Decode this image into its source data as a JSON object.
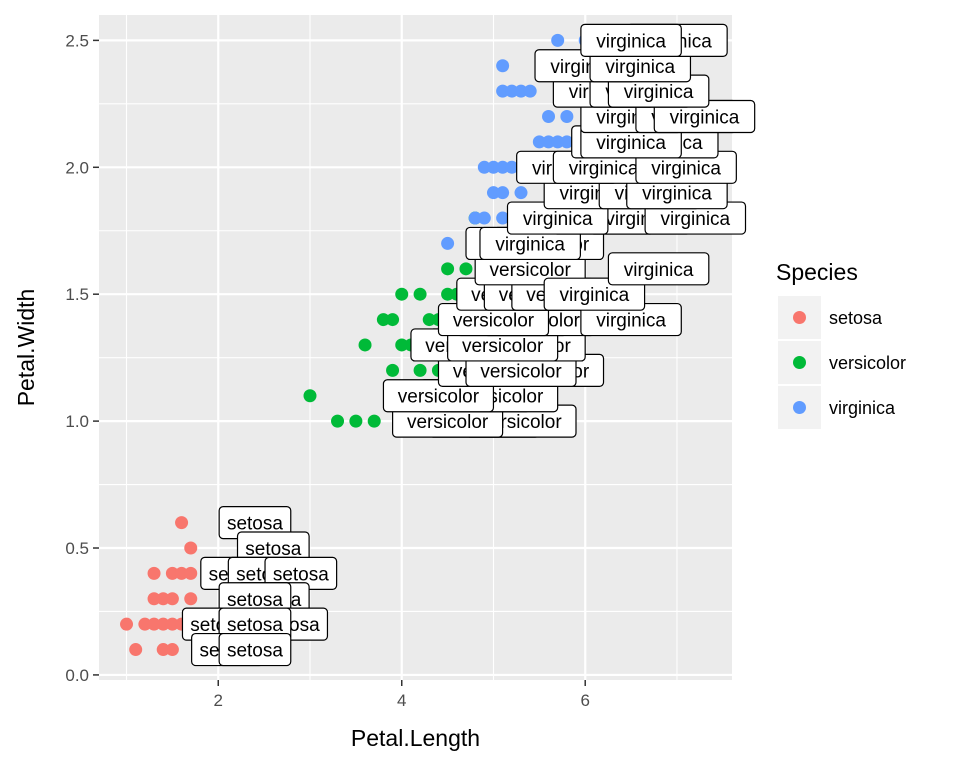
{
  "chart_data": {
    "type": "scatter",
    "xlabel": "Petal.Length",
    "ylabel": "Petal.Width",
    "xlim": [
      0.7,
      7.6
    ],
    "ylim": [
      -0.02,
      2.6
    ],
    "xticks": [
      2,
      4,
      6
    ],
    "yticks": [
      0.0,
      0.5,
      1.0,
      1.5,
      2.0,
      2.5
    ],
    "xtick_labels": [
      "2",
      "4",
      "6"
    ],
    "ytick_labels": [
      "0.0",
      "0.5",
      "1.0",
      "1.5",
      "2.0",
      "2.5"
    ],
    "grid": true,
    "legend": {
      "title": "Species",
      "position": "right",
      "items": [
        {
          "label": "setosa",
          "color": "#f8766d"
        },
        {
          "label": "versicolor",
          "color": "#00ba38"
        },
        {
          "label": "virginica",
          "color": "#619cff"
        }
      ]
    },
    "series": [
      {
        "name": "setosa",
        "color": "#f8766d",
        "points": [
          [
            1.0,
            0.2
          ],
          [
            1.1,
            0.1
          ],
          [
            1.2,
            0.2
          ],
          [
            1.3,
            0.2
          ],
          [
            1.4,
            0.2
          ],
          [
            1.5,
            0.2
          ],
          [
            1.6,
            0.2
          ],
          [
            1.3,
            0.3
          ],
          [
            1.4,
            0.3
          ],
          [
            1.5,
            0.3
          ],
          [
            1.7,
            0.3
          ],
          [
            1.3,
            0.4
          ],
          [
            1.5,
            0.4
          ],
          [
            1.6,
            0.4
          ],
          [
            1.7,
            0.4
          ],
          [
            1.9,
            0.4
          ],
          [
            1.4,
            0.1
          ],
          [
            1.5,
            0.1
          ],
          [
            1.6,
            0.6
          ],
          [
            1.7,
            0.5
          ],
          [
            1.9,
            0.2
          ]
        ]
      },
      {
        "name": "versicolor",
        "color": "#00ba38",
        "points": [
          [
            3.0,
            1.1
          ],
          [
            3.3,
            1.0
          ],
          [
            3.5,
            1.0
          ],
          [
            3.7,
            1.0
          ],
          [
            3.9,
            1.1
          ],
          [
            4.1,
            1.0
          ],
          [
            3.6,
            1.3
          ],
          [
            3.9,
            1.2
          ],
          [
            3.8,
            1.4
          ],
          [
            4.0,
            1.3
          ],
          [
            3.9,
            1.4
          ],
          [
            4.2,
            1.2
          ],
          [
            4.4,
            1.2
          ],
          [
            4.4,
            1.4
          ],
          [
            4.5,
            1.3
          ],
          [
            4.5,
            1.5
          ],
          [
            4.5,
            1.6
          ],
          [
            4.6,
            1.5
          ],
          [
            4.7,
            1.5
          ],
          [
            4.7,
            1.6
          ],
          [
            4.8,
            1.8
          ],
          [
            4.9,
            1.5
          ],
          [
            4.2,
            1.5
          ],
          [
            4.0,
            1.5
          ],
          [
            5.0,
            1.7
          ],
          [
            5.1,
            1.6
          ],
          [
            4.3,
            1.4
          ],
          [
            4.6,
            1.3
          ],
          [
            4.1,
            1.3
          ],
          [
            4.8,
            1.4
          ]
        ]
      },
      {
        "name": "virginica",
        "color": "#619cff",
        "points": [
          [
            4.5,
            1.7
          ],
          [
            4.8,
            1.8
          ],
          [
            4.9,
            1.8
          ],
          [
            5.0,
            1.9
          ],
          [
            5.1,
            1.8
          ],
          [
            5.1,
            1.9
          ],
          [
            5.3,
            1.9
          ],
          [
            4.9,
            2.0
          ],
          [
            5.0,
            2.0
          ],
          [
            5.1,
            2.0
          ],
          [
            5.2,
            2.0
          ],
          [
            5.5,
            2.1
          ],
          [
            5.6,
            2.1
          ],
          [
            5.7,
            2.1
          ],
          [
            5.8,
            2.1
          ],
          [
            5.9,
            2.1
          ],
          [
            6.0,
            1.8
          ],
          [
            5.6,
            2.2
          ],
          [
            5.8,
            2.2
          ],
          [
            6.7,
            2.2
          ],
          [
            6.1,
            2.3
          ],
          [
            5.1,
            2.3
          ],
          [
            5.2,
            2.3
          ],
          [
            5.3,
            2.3
          ],
          [
            5.4,
            2.3
          ],
          [
            5.6,
            2.4
          ],
          [
            5.1,
            2.4
          ],
          [
            6.1,
            2.5
          ],
          [
            5.7,
            2.5
          ],
          [
            6.0,
            2.5
          ],
          [
            6.7,
            2.0
          ],
          [
            5.6,
            1.8
          ],
          [
            5.1,
            1.5
          ],
          [
            5.6,
            1.4
          ],
          [
            6.3,
            1.8
          ]
        ]
      }
    ],
    "labels": [
      {
        "text": "setosa",
        "x": 2.4,
        "y": 0.6
      },
      {
        "text": "setosa",
        "x": 2.6,
        "y": 0.5
      },
      {
        "text": "setosa",
        "x": 2.2,
        "y": 0.4
      },
      {
        "text": "setosa",
        "x": 2.5,
        "y": 0.4
      },
      {
        "text": "setosa",
        "x": 2.9,
        "y": 0.4
      },
      {
        "text": "setosa",
        "x": 2.6,
        "y": 0.3
      },
      {
        "text": "setosa",
        "x": 2.4,
        "y": 0.3
      },
      {
        "text": "setosa",
        "x": 2.0,
        "y": 0.2
      },
      {
        "text": "setosa",
        "x": 2.4,
        "y": 0.2
      },
      {
        "text": "setosa",
        "x": 2.8,
        "y": 0.2
      },
      {
        "text": "setosa",
        "x": 2.4,
        "y": 0.2
      },
      {
        "text": "setosa",
        "x": 2.1,
        "y": 0.1
      },
      {
        "text": "setosa",
        "x": 2.4,
        "y": 0.1
      },
      {
        "text": "versicolor",
        "x": 4.9,
        "y": 1.0
      },
      {
        "text": "versicolor",
        "x": 5.3,
        "y": 1.0
      },
      {
        "text": "versicolor",
        "x": 4.5,
        "y": 1.0
      },
      {
        "text": "versicolor",
        "x": 4.8,
        "y": 1.1
      },
      {
        "text": "versicolor",
        "x": 5.1,
        "y": 1.1
      },
      {
        "text": "versicolor",
        "x": 4.4,
        "y": 1.1
      },
      {
        "text": "versicolor",
        "x": 5.6,
        "y": 1.2
      },
      {
        "text": "versicolor",
        "x": 5.0,
        "y": 1.2
      },
      {
        "text": "versicolor",
        "x": 5.3,
        "y": 1.2
      },
      {
        "text": "versicolor",
        "x": 5.4,
        "y": 1.3
      },
      {
        "text": "versicolor",
        "x": 4.9,
        "y": 1.3
      },
      {
        "text": "versicolor",
        "x": 4.7,
        "y": 1.3
      },
      {
        "text": "versicolor",
        "x": 5.1,
        "y": 1.3
      },
      {
        "text": "versicolor",
        "x": 5.2,
        "y": 1.4
      },
      {
        "text": "versicolor",
        "x": 5.5,
        "y": 1.4
      },
      {
        "text": "versicolor",
        "x": 5.0,
        "y": 1.4
      },
      {
        "text": "versicolor",
        "x": 5.2,
        "y": 1.5
      },
      {
        "text": "versicolor",
        "x": 5.5,
        "y": 1.5
      },
      {
        "text": "versicolor",
        "x": 5.8,
        "y": 1.5
      },
      {
        "text": "versicolor",
        "x": 5.4,
        "y": 1.6
      },
      {
        "text": "versicolor",
        "x": 5.6,
        "y": 1.7
      },
      {
        "text": "versicolor",
        "x": 5.3,
        "y": 1.7
      },
      {
        "text": "virginica",
        "x": 6.5,
        "y": 1.4
      },
      {
        "text": "virginica",
        "x": 6.1,
        "y": 1.5
      },
      {
        "text": "virginica",
        "x": 6.8,
        "y": 1.6
      },
      {
        "text": "virginica",
        "x": 5.4,
        "y": 1.7
      },
      {
        "text": "virginica",
        "x": 6.2,
        "y": 1.8
      },
      {
        "text": "virginica",
        "x": 6.6,
        "y": 1.8
      },
      {
        "text": "virginica",
        "x": 7.2,
        "y": 1.8
      },
      {
        "text": "virginica",
        "x": 5.7,
        "y": 1.8
      },
      {
        "text": "virginica",
        "x": 6.1,
        "y": 1.9
      },
      {
        "text": "virginica",
        "x": 6.7,
        "y": 1.9
      },
      {
        "text": "virginica",
        "x": 7.0,
        "y": 1.9
      },
      {
        "text": "virginica",
        "x": 5.8,
        "y": 2.0
      },
      {
        "text": "virginica",
        "x": 6.2,
        "y": 2.0
      },
      {
        "text": "virginica",
        "x": 7.1,
        "y": 2.0
      },
      {
        "text": "virginica",
        "x": 6.4,
        "y": 2.1
      },
      {
        "text": "virginica",
        "x": 6.9,
        "y": 2.1
      },
      {
        "text": "virginica",
        "x": 6.5,
        "y": 2.1
      },
      {
        "text": "virginica",
        "x": 6.5,
        "y": 2.2
      },
      {
        "text": "virginica",
        "x": 7.1,
        "y": 2.2
      },
      {
        "text": "virginica",
        "x": 7.3,
        "y": 2.2
      },
      {
        "text": "virginica",
        "x": 6.2,
        "y": 2.3
      },
      {
        "text": "virginica",
        "x": 6.6,
        "y": 2.3
      },
      {
        "text": "virginica",
        "x": 6.8,
        "y": 2.3
      },
      {
        "text": "virginica",
        "x": 6.0,
        "y": 2.4
      },
      {
        "text": "virginica",
        "x": 6.6,
        "y": 2.4
      },
      {
        "text": "virginica",
        "x": 7.0,
        "y": 2.5
      },
      {
        "text": "virginica",
        "x": 6.5,
        "y": 2.5
      }
    ]
  }
}
